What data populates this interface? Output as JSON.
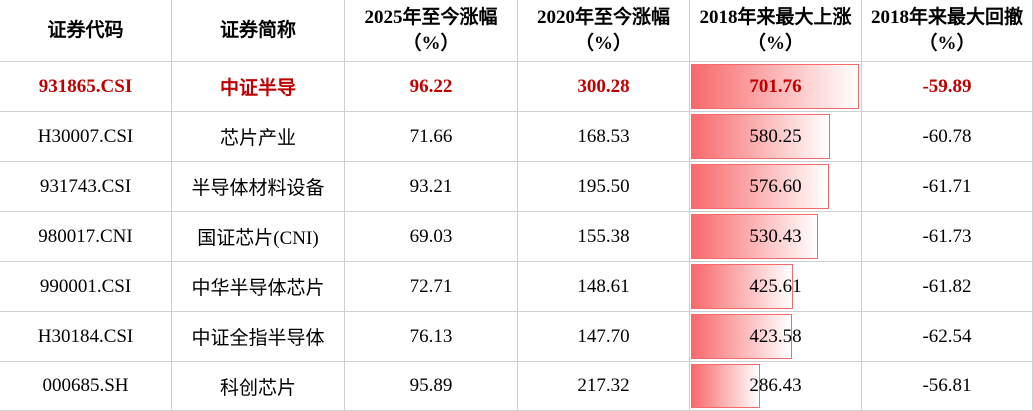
{
  "table": {
    "header": [
      "证券代码",
      "证券简称",
      "2025年至今涨幅（%）",
      "2020年至今涨幅（%）",
      "2018年来最大上涨（%）",
      "2018年来最大回撤（%）"
    ],
    "rows": [
      [
        "931865.CSI",
        "中证半导",
        "96.22",
        "300.28",
        "701.76",
        "-59.89"
      ],
      [
        "H30007.CSI",
        "芯片产业",
        "71.66",
        "168.53",
        "580.25",
        "-60.78"
      ],
      [
        "931743.CSI",
        "半导体材料设备",
        "93.21",
        "195.50",
        "576.60",
        "-61.71"
      ],
      [
        "980017.CNI",
        "国证芯片(CNI)",
        "69.03",
        "155.38",
        "530.43",
        "-61.73"
      ],
      [
        "990001.CSI",
        "中华半导体芯片",
        "72.71",
        "148.61",
        "425.61",
        "-61.82"
      ],
      [
        "H30184.CSI",
        "中证全指半导体",
        "76.13",
        "147.70",
        "423.58",
        "-62.54"
      ],
      [
        "000685.SH",
        "科创芯片",
        "95.89",
        "217.32",
        "286.43",
        "-56.81"
      ]
    ]
  }
}
